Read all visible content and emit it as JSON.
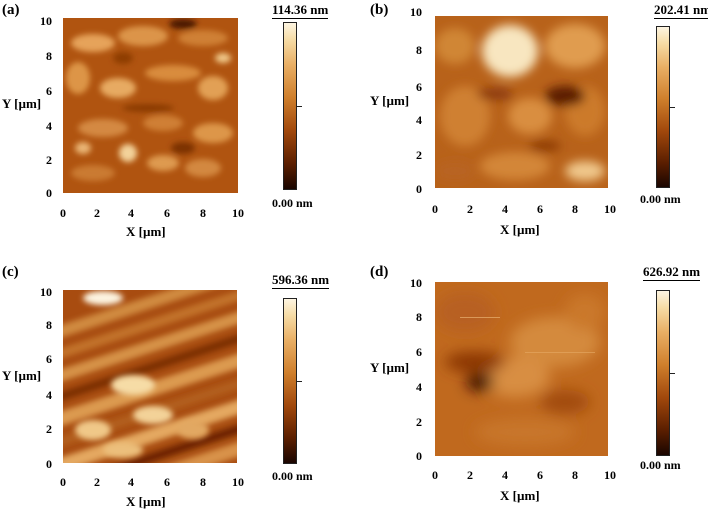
{
  "panels": [
    {
      "label": "(a)",
      "ylabel": "Y [µm]",
      "xlabel": "X [µm]",
      "scale_max": "114.36 nm",
      "scale_min": "0.00 nm",
      "yticks": [
        "10",
        "8",
        "6",
        "4",
        "2",
        "0"
      ],
      "xticks": [
        "0",
        "2",
        "4",
        "6",
        "8",
        "10"
      ]
    },
    {
      "label": "(b)",
      "ylabel": "Y [µm]",
      "xlabel": "X [µm]",
      "scale_max": "202.41 nm",
      "scale_min": "0.00 nm",
      "yticks": [
        "10",
        "8",
        "6",
        "4",
        "2",
        "0"
      ],
      "xticks": [
        "0",
        "2",
        "4",
        "6",
        "8",
        "10"
      ]
    },
    {
      "label": "(c)",
      "ylabel": "Y [µm]",
      "xlabel": "X [µm]",
      "scale_max": "596.36 nm",
      "scale_min": "0.00 nm",
      "yticks": [
        "10",
        "8",
        "6",
        "4",
        "2",
        "0"
      ],
      "xticks": [
        "0",
        "2",
        "4",
        "6",
        "8",
        "10"
      ]
    },
    {
      "label": "(d)",
      "ylabel": "Y [µm]",
      "xlabel": "X [µm]",
      "scale_max": "626.92 nm",
      "scale_min": "0.00 nm",
      "yticks": [
        "10",
        "8",
        "6",
        "4",
        "2",
        "0"
      ],
      "xticks": [
        "0",
        "2",
        "4",
        "6",
        "8",
        "10"
      ]
    }
  ]
}
